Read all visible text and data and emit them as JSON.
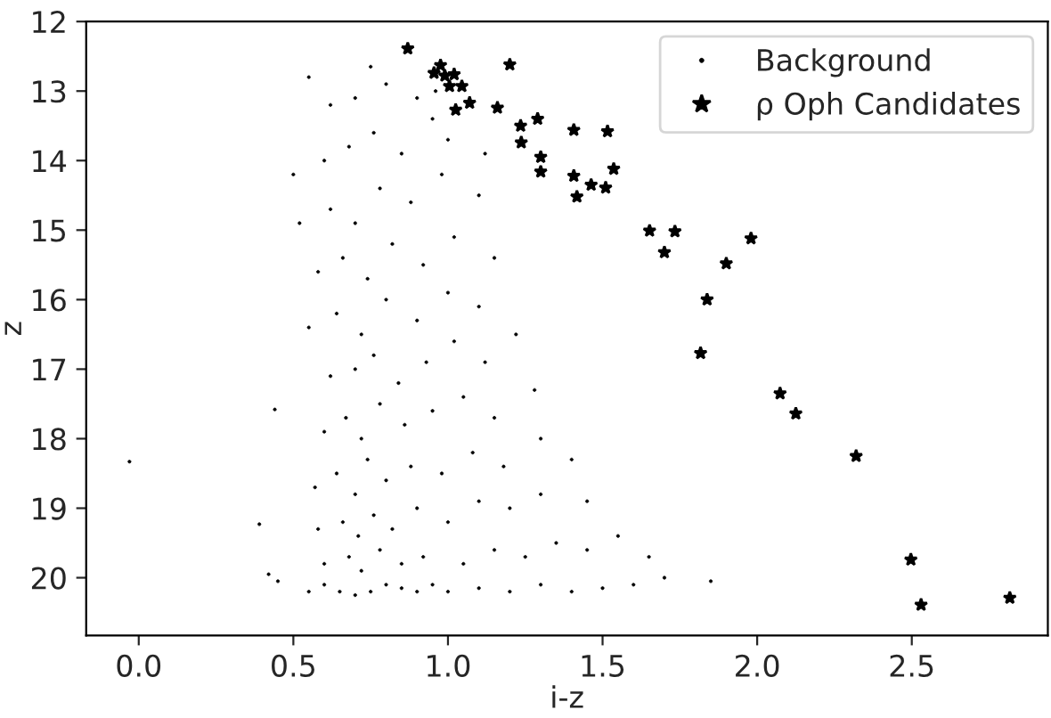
{
  "chart_data": {
    "type": "scatter",
    "xlabel": "i-z",
    "ylabel": "z",
    "xlim": [
      -0.17,
      2.94
    ],
    "ylim": [
      20.83,
      12
    ],
    "xticks": [
      {
        "value": 0,
        "label": "0.0"
      },
      0.5,
      {
        "value": 1,
        "label": "1.0"
      },
      1.5,
      {
        "value": 2,
        "label": "2.0"
      },
      2.5
    ],
    "yticks": [
      12,
      13,
      14,
      15,
      16,
      17,
      18,
      19,
      20
    ],
    "grid": false,
    "legend": "top right",
    "series": [
      {
        "name": "Background",
        "color": "#000000",
        "marker": "circle",
        "x": [
          0.55,
          0.6,
          0.65,
          0.7,
          0.75,
          0.8,
          0.85,
          0.9,
          0.95,
          1.0,
          1.1,
          1.2,
          1.3,
          1.4,
          1.5,
          1.6,
          1.7,
          1.85,
          0.6,
          0.68,
          0.72,
          0.78,
          0.85,
          0.92,
          1.05,
          1.15,
          1.25,
          1.35,
          1.45,
          1.55,
          1.65,
          0.58,
          0.66,
          0.71,
          0.76,
          0.82,
          0.9,
          1.0,
          1.1,
          1.2,
          1.3,
          1.45,
          0.57,
          0.64,
          0.7,
          0.74,
          0.8,
          0.88,
          0.98,
          1.08,
          1.18,
          1.3,
          1.4,
          0.6,
          0.67,
          0.72,
          0.78,
          0.86,
          0.95,
          1.05,
          1.15,
          1.28,
          0.62,
          0.7,
          0.76,
          0.84,
          0.93,
          1.02,
          1.12,
          1.22,
          0.55,
          0.64,
          0.72,
          0.8,
          0.9,
          1.0,
          1.1,
          0.58,
          0.66,
          0.74,
          0.82,
          0.92,
          1.02,
          1.15,
          0.52,
          0.62,
          0.7,
          0.78,
          0.88,
          0.98,
          1.1,
          0.5,
          0.6,
          0.68,
          0.76,
          0.85,
          0.95,
          1.0,
          1.12,
          0.62,
          0.7,
          0.8,
          0.9,
          0.96,
          0.75,
          0.55,
          -0.03,
          0.44,
          0.39,
          0.42,
          0.45
        ],
        "values": [
          20.2,
          20.1,
          20.2,
          20.25,
          20.2,
          20.1,
          20.15,
          20.2,
          20.1,
          20.2,
          20.15,
          20.2,
          20.1,
          20.2,
          20.15,
          20.1,
          20.0,
          20.05,
          19.8,
          19.7,
          19.9,
          19.6,
          19.8,
          19.7,
          19.8,
          19.6,
          19.7,
          19.5,
          19.6,
          19.4,
          19.7,
          19.3,
          19.2,
          19.4,
          19.1,
          19.3,
          19.0,
          19.2,
          18.9,
          19.0,
          18.8,
          18.9,
          18.7,
          18.5,
          18.8,
          18.3,
          18.6,
          18.4,
          18.5,
          18.2,
          18.4,
          18.0,
          18.3,
          17.9,
          17.7,
          18.0,
          17.5,
          17.8,
          17.6,
          17.4,
          17.7,
          17.3,
          17.1,
          17.0,
          16.8,
          17.2,
          16.9,
          16.6,
          16.9,
          16.5,
          16.4,
          16.2,
          16.5,
          16.0,
          16.3,
          15.9,
          16.1,
          15.6,
          15.4,
          15.7,
          15.2,
          15.5,
          15.1,
          15.4,
          14.9,
          14.7,
          14.9,
          14.4,
          14.6,
          14.2,
          14.5,
          14.2,
          14.0,
          13.8,
          13.6,
          13.9,
          13.4,
          13.7,
          13.9,
          13.2,
          13.1,
          12.9,
          13.1,
          13.0,
          12.65,
          12.8,
          18.33,
          17.58,
          19.23,
          19.95,
          20.05
        ]
      },
      {
        "name": "ρ Oph Candidates",
        "color": "#000000",
        "marker": "star",
        "x": [
          0.87,
          0.955,
          0.976,
          0.99,
          1.02,
          1.005,
          1.045,
          1.025,
          1.07,
          1.16,
          1.2,
          1.29,
          1.235,
          1.237,
          1.407,
          1.516,
          1.3,
          1.3,
          1.407,
          1.536,
          1.463,
          1.51,
          1.417,
          1.652,
          1.734,
          1.7,
          1.98,
          1.9,
          1.838,
          1.817,
          2.074,
          2.125,
          2.32,
          2.497,
          2.53,
          2.817
        ],
        "values": [
          12.39,
          12.74,
          12.63,
          12.78,
          12.76,
          12.93,
          12.93,
          13.27,
          13.17,
          13.24,
          12.62,
          13.4,
          13.5,
          13.74,
          13.56,
          13.58,
          13.95,
          14.16,
          14.22,
          14.12,
          14.35,
          14.39,
          14.52,
          15.01,
          15.02,
          15.32,
          15.12,
          15.48,
          16.0,
          16.77,
          17.35,
          17.64,
          18.25,
          19.74,
          20.39,
          20.29
        ]
      }
    ]
  }
}
